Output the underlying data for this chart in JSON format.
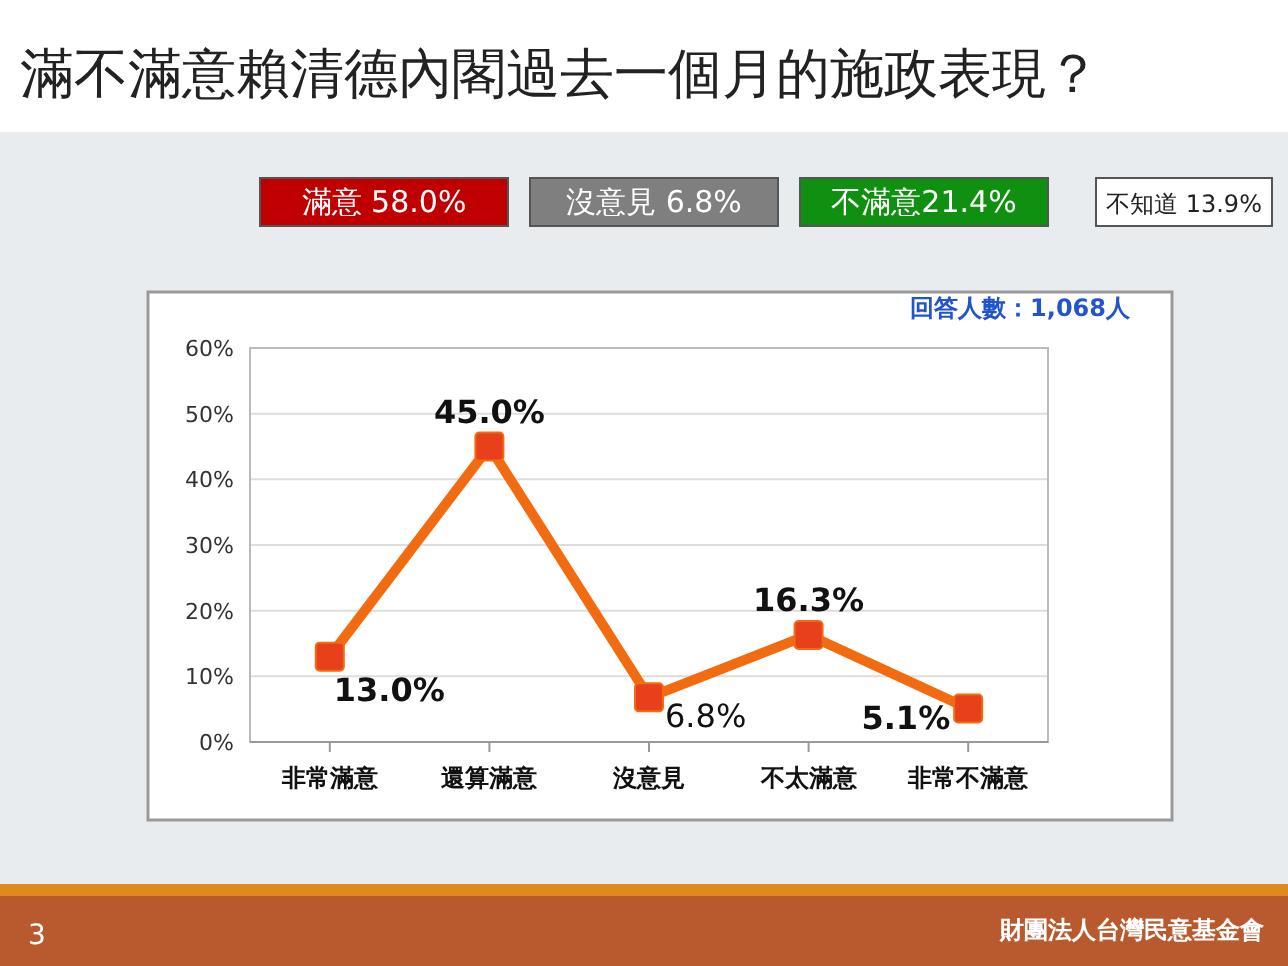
{
  "chart_data": {
    "type": "line",
    "title": "滿不滿意賴清德內閣過去一個月的施政表現？",
    "categories": [
      "非常滿意",
      "還算滿意",
      "沒意見",
      "不太滿意",
      "非常不滿意"
    ],
    "series": [
      {
        "color": "#f26b10",
        "values": [
          13.0,
          45.0,
          6.8,
          16.3,
          5.1
        ],
        "value_labels": [
          "13.0%",
          "45.0%",
          "6.8%",
          "16.3%",
          "5.1%"
        ]
      }
    ],
    "ylim": [
      0,
      60
    ],
    "yticks": [
      {
        "value": 0,
        "label": "0%"
      },
      {
        "value": 10,
        "label": "10%"
      },
      {
        "value": 20,
        "label": "20%"
      },
      {
        "value": 30,
        "label": "30%"
      },
      {
        "value": 40,
        "label": "40%"
      },
      {
        "value": 50,
        "label": "50%"
      },
      {
        "value": 60,
        "label": "60%"
      }
    ],
    "grid": "y",
    "marker": "square",
    "line_style": "solid",
    "annotations": [
      "滿意 58.0%",
      "沒意見 6.8%",
      "不滿意21.4%",
      "不知道 13.9%",
      "回答人數：1,068人",
      "3",
      "財團法人台灣民意基金會"
    ]
  }
}
